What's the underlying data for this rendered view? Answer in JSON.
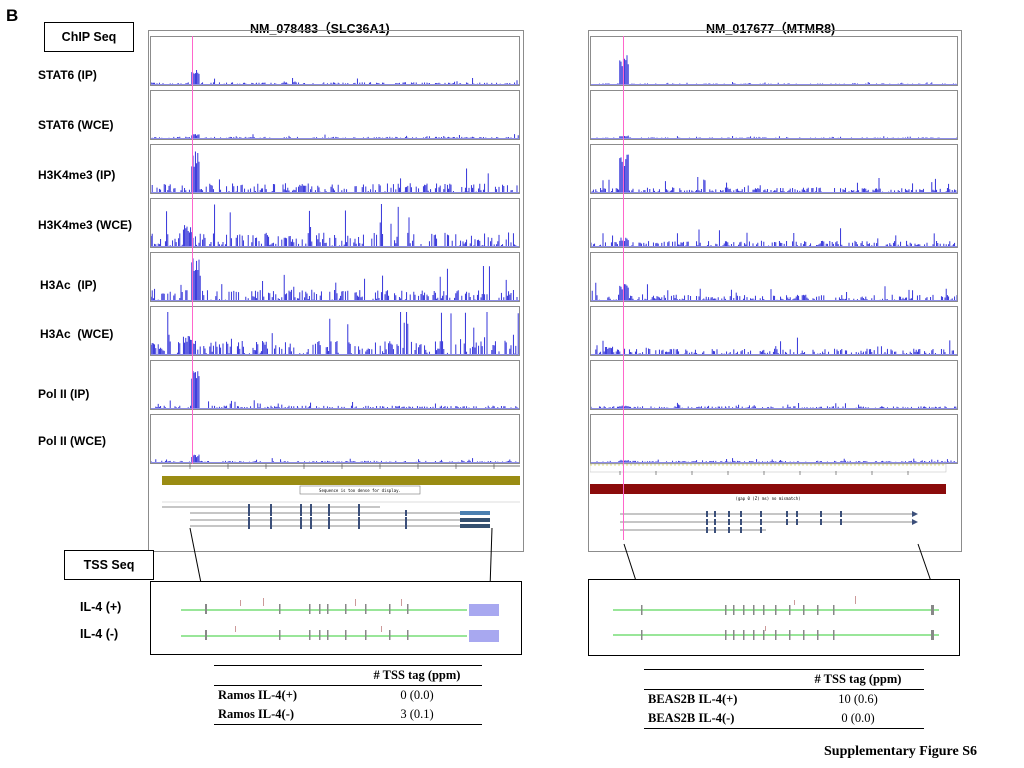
{
  "panel_label": "B",
  "sections": {
    "chip": "ChIP Seq",
    "tss": "TSS Seq"
  },
  "genes": [
    {
      "title": "NM_078483（SLC36A1)"
    },
    {
      "title": "NM_017677（MTMR8)"
    }
  ],
  "tracks": [
    "STAT6 (IP)",
    "STAT6 (WCE)",
    "H3K4me3 (IP)",
    "H3K4me3 (WCE)",
    "H3Ac  (IP)",
    "H3Ac  (WCE)",
    "Pol II (IP)",
    "Pol II (WCE)"
  ],
  "tss_rows": [
    "IL-4 (+)",
    "IL-4 (-)"
  ],
  "tables": [
    {
      "header": "# TSS tag (ppm)",
      "rows": [
        {
          "sample": "Ramos IL-4(+)",
          "value": "0 (0.0)"
        },
        {
          "sample": "Ramos IL-4(-)",
          "value": "3 (0.1)"
        }
      ]
    },
    {
      "header": "# TSS tag (ppm)",
      "rows": [
        {
          "sample": "BEAS2B IL-4(+)",
          "value": "10 (0.6)"
        },
        {
          "sample": "BEAS2B IL-4(-)",
          "value": "0 (0.0)"
        }
      ]
    }
  ],
  "caption": "Supplementary Figure S6",
  "browser_strip": {
    "left_text": "Sequence is too dense for display.",
    "right_text": "(gap 0 (Z) ms) no mismatch)"
  },
  "colors": {
    "signal": "#1f1fd6",
    "tss_marker": "#ff66cc",
    "contig_left": "#9a8c13",
    "contig_right": "#8b0b0b",
    "tss_line": "#33cc33",
    "exon_block": "#a8a8f0"
  }
}
